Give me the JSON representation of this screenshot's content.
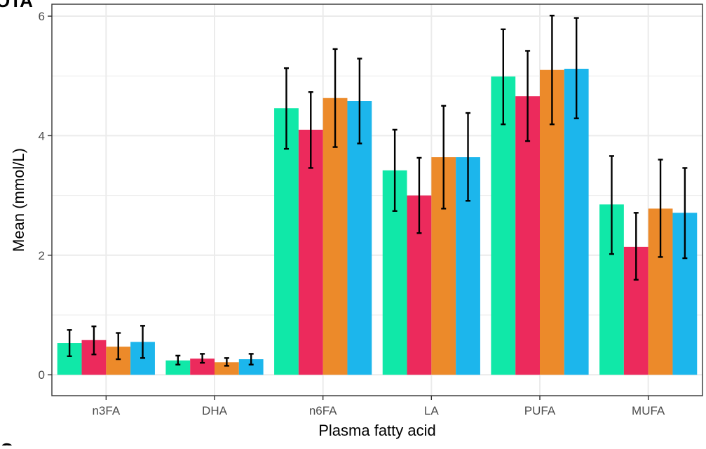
{
  "panel_tag_top": "OTA",
  "panel_tag_bottom": "C",
  "colors": {
    "series_1": "#10e8a8",
    "series_2": "#ec2a5c",
    "series_3": "#ec8a2a",
    "series_4": "#1cb6ec",
    "grid": "#ebebeb",
    "axis": "#333333",
    "error_bar": "#000000"
  },
  "chart_data": {
    "type": "bar",
    "title": "",
    "xlabel": "Plasma fatty acid",
    "ylabel": "Mean (mmol/L)",
    "categories": [
      "n3FA",
      "DHA",
      "n6FA",
      "LA",
      "PUFA",
      "MUFA"
    ],
    "ylim": [
      -0.35,
      6.2
    ],
    "yticks": [
      0,
      2,
      4,
      6
    ],
    "grid": true,
    "legend": "none",
    "series": [
      {
        "values": [
          0.53,
          0.24,
          4.46,
          3.42,
          4.99,
          2.85
        ],
        "error_low": [
          0.31,
          0.17,
          3.78,
          2.74,
          4.19,
          2.02
        ],
        "error_high": [
          0.75,
          0.32,
          5.13,
          4.1,
          5.78,
          3.66
        ]
      },
      {
        "values": [
          0.58,
          0.27,
          4.1,
          3.0,
          4.66,
          2.14
        ],
        "error_low": [
          0.34,
          0.2,
          3.46,
          2.37,
          3.91,
          1.59
        ],
        "error_high": [
          0.81,
          0.35,
          4.73,
          3.63,
          5.42,
          2.71
        ]
      },
      {
        "values": [
          0.47,
          0.21,
          4.63,
          3.64,
          5.1,
          2.78
        ],
        "error_low": [
          0.26,
          0.15,
          3.81,
          2.78,
          4.19,
          1.97
        ],
        "error_high": [
          0.7,
          0.28,
          5.45,
          4.5,
          6.01,
          3.6
        ]
      },
      {
        "values": [
          0.55,
          0.26,
          4.58,
          3.64,
          5.12,
          2.71
        ],
        "error_low": [
          0.28,
          0.17,
          3.87,
          2.91,
          4.29,
          1.95
        ],
        "error_high": [
          0.82,
          0.35,
          5.29,
          4.38,
          5.97,
          3.46
        ]
      }
    ]
  }
}
